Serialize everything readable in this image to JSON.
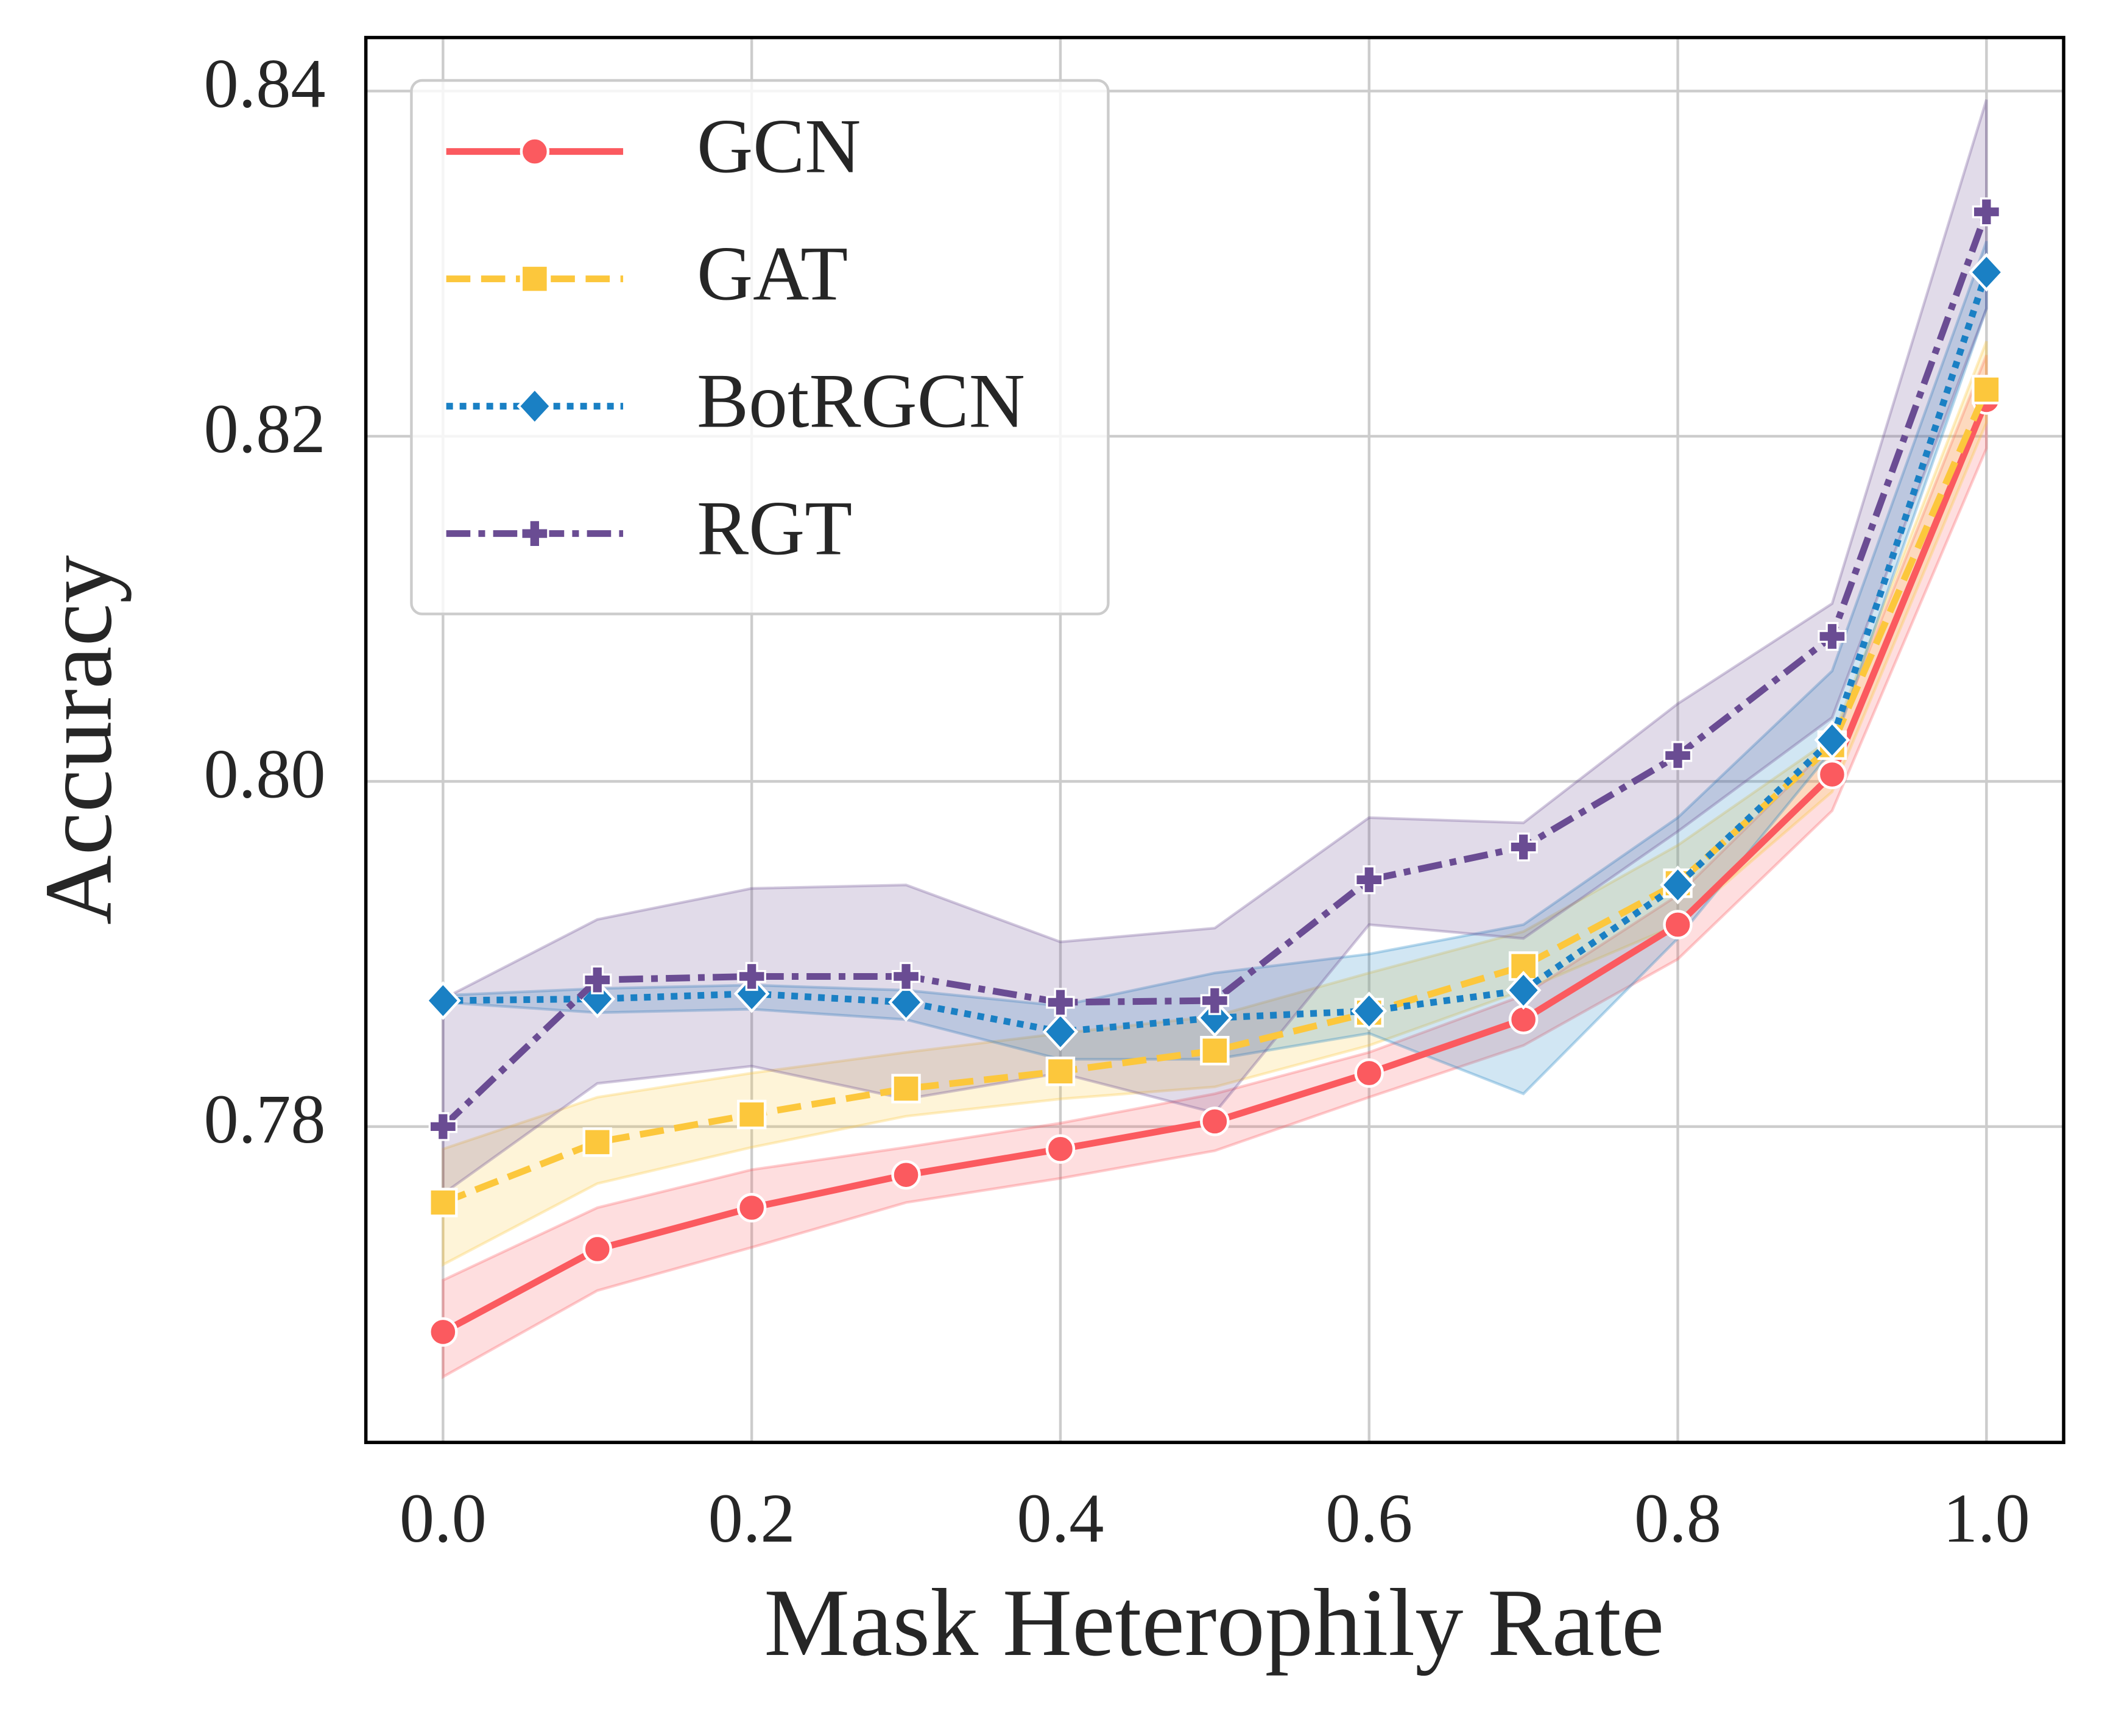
{
  "chart_data": {
    "type": "line",
    "xlabel": "Mask Heterophily Rate",
    "ylabel": "Accuracy",
    "x": [
      0.0,
      0.1,
      0.2,
      0.3,
      0.4,
      0.5,
      0.6,
      0.7,
      0.8,
      0.9,
      1.0
    ],
    "xlim": [
      -0.05,
      1.05
    ],
    "ylim": [
      0.7617,
      0.8431
    ],
    "xticks": [
      {
        "value": 0,
        "label": "0.0"
      },
      0.2,
      0.4,
      0.6,
      0.8,
      {
        "value": 1,
        "label": "1.0"
      }
    ],
    "yticks": [
      0.78,
      {
        "value": 0.8,
        "label": "0.80"
      },
      0.82,
      0.84
    ],
    "grid": true,
    "legend": "upper left",
    "series": [
      {
        "name": "GCN",
        "color": "#fb5a5f",
        "linestyle": "-",
        "marker": "o",
        "values": [
          0.7681,
          0.7729,
          0.7753,
          0.7772,
          0.7787,
          0.7803,
          0.7831,
          0.7862,
          0.7917,
          0.8004,
          0.8221
        ],
        "lower": [
          0.7655,
          0.7705,
          0.773,
          0.7756,
          0.777,
          0.7786,
          0.7817,
          0.7847,
          0.7897,
          0.7983,
          0.8193
        ],
        "upper": [
          0.7711,
          0.7753,
          0.7775,
          0.7788,
          0.7802,
          0.7819,
          0.7843,
          0.7876,
          0.7934,
          0.8022,
          0.8247
        ]
      },
      {
        "name": "GAT",
        "color": "#fcc73c",
        "linestyle": "--",
        "marker": "s",
        "values": [
          0.7756,
          0.7791,
          0.7807,
          0.7822,
          0.7832,
          0.7844,
          0.7866,
          0.7893,
          0.7941,
          0.8021,
          0.8227
        ],
        "lower": [
          0.772,
          0.7767,
          0.7788,
          0.7806,
          0.7816,
          0.7823,
          0.7847,
          0.7879,
          0.7917,
          0.7994,
          0.8208
        ],
        "upper": [
          0.7787,
          0.7817,
          0.7831,
          0.7843,
          0.7854,
          0.7864,
          0.7889,
          0.7913,
          0.7963,
          0.8025,
          0.8255
        ]
      },
      {
        "name": "BotRGCN",
        "color": "#1a80c4",
        "linestyle": ":",
        "marker": "D",
        "values": [
          0.7873,
          0.7874,
          0.7877,
          0.7872,
          0.7855,
          0.7863,
          0.7867,
          0.7879,
          0.794,
          0.8024,
          0.8295
        ],
        "lower": [
          0.7872,
          0.7866,
          0.7868,
          0.7862,
          0.7839,
          0.7839,
          0.7854,
          0.7819,
          0.7909,
          0.8018,
          0.8274
        ],
        "upper": [
          0.7876,
          0.788,
          0.7882,
          0.7879,
          0.787,
          0.7889,
          0.79,
          0.7917,
          0.7979,
          0.8064,
          0.8313
        ]
      },
      {
        "name": "RGT",
        "color": "#6a4c93",
        "linestyle": "-.",
        "marker": "P",
        "values": [
          0.78,
          0.7885,
          0.7887,
          0.7887,
          0.7872,
          0.7873,
          0.7943,
          0.7962,
          0.8015,
          0.8084,
          0.833
        ],
        "lower": [
          0.7761,
          0.7825,
          0.7835,
          0.7816,
          0.7831,
          0.7808,
          0.7917,
          0.7909,
          0.7971,
          0.8037,
          0.8274
        ],
        "upper": [
          0.7874,
          0.792,
          0.7938,
          0.794,
          0.7907,
          0.7915,
          0.7979,
          0.7976,
          0.8045,
          0.8103,
          0.8395
        ]
      }
    ]
  }
}
